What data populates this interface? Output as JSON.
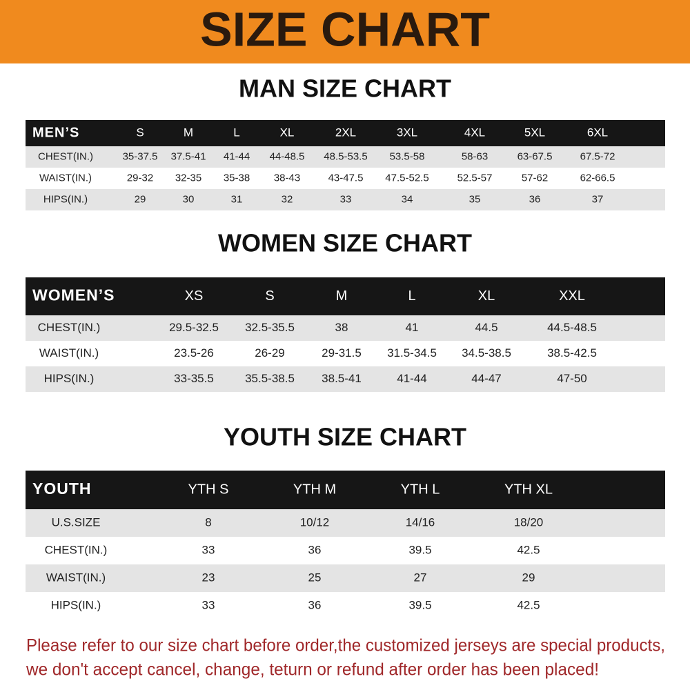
{
  "header": {
    "title": "SIZE CHART"
  },
  "sections": [
    {
      "title": "MAN SIZE CHART",
      "columns": [
        "MEN’S",
        "S",
        "M",
        "L",
        "XL",
        "2XL",
        "3XL",
        "4XL",
        "5XL",
        "6XL"
      ],
      "rows": [
        [
          "CHEST(IN.)",
          "35-37.5",
          "37.5-41",
          "41-44",
          "44-48.5",
          "48.5-53.5",
          "53.5-58",
          "58-63",
          "63-67.5",
          "67.5-72"
        ],
        [
          "WAIST(IN.)",
          "29-32",
          "32-35",
          "35-38",
          "38-43",
          "43-47.5",
          "47.5-52.5",
          "52.5-57",
          "57-62",
          "62-66.5"
        ],
        [
          "HIPS(IN.)",
          "29",
          "30",
          "31",
          "32",
          "33",
          "34",
          "35",
          "36",
          "37"
        ]
      ]
    },
    {
      "title": "WOMEN SIZE CHART",
      "columns": [
        "WOMEN’S",
        "XS",
        "S",
        "M",
        "L",
        "XL",
        "XXL"
      ],
      "rows": [
        [
          "CHEST(IN.)",
          "29.5-32.5",
          "32.5-35.5",
          "38",
          "41",
          "44.5",
          "44.5-48.5"
        ],
        [
          "WAIST(IN.)",
          "23.5-26",
          "26-29",
          "29-31.5",
          "31.5-34.5",
          "34.5-38.5",
          "38.5-42.5"
        ],
        [
          "HIPS(IN.)",
          "33-35.5",
          "35.5-38.5",
          "38.5-41",
          "41-44",
          "44-47",
          "47-50"
        ]
      ]
    },
    {
      "title": "YOUTH SIZE CHART",
      "columns": [
        "YOUTH",
        "YTH S",
        "YTH M",
        "YTH L",
        "YTH XL"
      ],
      "rows": [
        [
          "U.S.SIZE",
          "8",
          "10/12",
          "14/16",
          "18/20"
        ],
        [
          "CHEST(IN.)",
          "33",
          "36",
          "39.5",
          "42.5"
        ],
        [
          "WAIST(IN.)",
          "23",
          "25",
          "27",
          "29"
        ],
        [
          "HIPS(IN.)",
          "33",
          "36",
          "39.5",
          "42.5"
        ]
      ]
    }
  ],
  "notice": [
    "Please refer to our size chart before order,the customized jerseys are special products,",
    "we don't accept cancel, change, teturn or refund after order has been placed!"
  ]
}
